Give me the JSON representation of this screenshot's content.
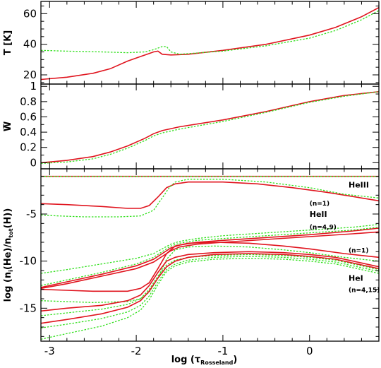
{
  "chart_data": [
    {
      "type": "line",
      "panel": "temperature",
      "ylabel": "T [K]",
      "xlim": [
        -3.1,
        0.8
      ],
      "ylim": [
        14,
        68
      ],
      "y_ticks": [
        20,
        40,
        60
      ],
      "series": [
        {
          "style": "solid",
          "color": "#e0141e",
          "x": [
            -3.1,
            -2.8,
            -2.5,
            -2.3,
            -2.1,
            -1.95,
            -1.85,
            -1.8,
            -1.75,
            -1.7,
            -1.6,
            -1.4,
            -1.0,
            -0.5,
            0.0,
            0.3,
            0.6,
            0.8
          ],
          "y": [
            17,
            18.5,
            21,
            24,
            29,
            32,
            34,
            35,
            35.5,
            33.5,
            33,
            33.5,
            36,
            40,
            46,
            51,
            58,
            64
          ]
        },
        {
          "style": "dotted",
          "color": "#33e01f",
          "x": [
            -3.1,
            -2.8,
            -2.4,
            -2.1,
            -1.9,
            -1.8,
            -1.7,
            -1.65,
            -1.6,
            -1.5,
            -1.0,
            -0.5,
            0.0,
            0.3,
            0.6,
            0.8
          ],
          "y": [
            36,
            35.5,
            35,
            34.5,
            35,
            36.5,
            38.5,
            38.5,
            35,
            33.5,
            35.5,
            39,
            44,
            49,
            56,
            62
          ]
        }
      ]
    },
    {
      "type": "line",
      "panel": "dilution",
      "ylabel": "W",
      "xlim": [
        -3.1,
        0.8
      ],
      "ylim": [
        -0.08,
        1.03
      ],
      "y_ticks": [
        0,
        0.2,
        0.4,
        0.6,
        0.8,
        1
      ],
      "series": [
        {
          "style": "solid",
          "color": "#e0141e",
          "x": [
            -3.1,
            -2.8,
            -2.5,
            -2.3,
            -2.1,
            -1.9,
            -1.8,
            -1.7,
            -1.5,
            -1.0,
            -0.5,
            0.0,
            0.4,
            0.8
          ],
          "y": [
            0.0,
            0.03,
            0.08,
            0.14,
            0.22,
            0.32,
            0.38,
            0.42,
            0.47,
            0.56,
            0.67,
            0.8,
            0.88,
            0.93
          ]
        },
        {
          "style": "dotted",
          "color": "#33e01f",
          "x": [
            -3.1,
            -2.8,
            -2.5,
            -2.3,
            -2.1,
            -1.9,
            -1.8,
            -1.7,
            -1.5,
            -1.0,
            -0.5,
            0.0,
            0.4,
            0.8
          ],
          "y": [
            -0.01,
            0.01,
            0.05,
            0.11,
            0.19,
            0.29,
            0.35,
            0.39,
            0.44,
            0.54,
            0.66,
            0.79,
            0.87,
            0.93
          ]
        }
      ]
    },
    {
      "type": "line",
      "panel": "populations",
      "xlabel_main": "log (τ",
      "xlabel_sub": "Rosseland",
      "xlabel_end": ")",
      "ylabel_main": "log (n",
      "ylabel_sub1": "i",
      "ylabel_mid": "(He)/n",
      "ylabel_sub2": "tot",
      "ylabel_end": "(H))",
      "xlim": [
        -3.1,
        0.8
      ],
      "ylim": [
        -18.5,
        -0.2
      ],
      "x_ticks": [
        -3,
        -2,
        -1,
        0
      ],
      "y_ticks": [
        -15,
        -10,
        -5
      ],
      "annotations": [
        {
          "text": "HeIII",
          "x": 0.45,
          "y": -2.2,
          "size": "big"
        },
        {
          "text": "(n=1)",
          "x": 0.0,
          "y": -4.1,
          "size": "small"
        },
        {
          "text": "HeII",
          "x": 0.0,
          "y": -5.3,
          "size": "big"
        },
        {
          "text": "(n=4,9)",
          "x": 0.0,
          "y": -6.6,
          "size": "small"
        },
        {
          "text": "(n=1)",
          "x": 0.45,
          "y": -9.1,
          "size": "small"
        },
        {
          "text": "HeI",
          "x": 0.45,
          "y": -12.1,
          "size": "big"
        },
        {
          "text": "(n=4,15)",
          "x": 0.45,
          "y": -13.3,
          "size": "small"
        }
      ],
      "series": [
        {
          "style": "solid",
          "color": "#e0141e",
          "x": [
            -3.1,
            0.8
          ],
          "y": [
            -1.0,
            -1.0
          ]
        },
        {
          "style": "dotted",
          "color": "#33e01f",
          "x": [
            -3.1,
            0.8
          ],
          "y": [
            -1.0,
            -1.0
          ]
        },
        {
          "style": "solid",
          "color": "#e0141e",
          "x": [
            -3.1,
            -2.8,
            -2.4,
            -2.1,
            -1.95,
            -1.85,
            -1.75,
            -1.65,
            -1.55,
            -1.4,
            -1.2,
            -1.0,
            -0.6,
            -0.2,
            0.2,
            0.6,
            0.8
          ],
          "y": [
            -3.9,
            -4.0,
            -4.2,
            -4.4,
            -4.4,
            -4.1,
            -3.2,
            -2.2,
            -1.8,
            -1.6,
            -1.6,
            -1.6,
            -1.8,
            -2.2,
            -2.7,
            -3.3,
            -3.6
          ]
        },
        {
          "style": "dotted",
          "color": "#33e01f",
          "x": [
            -3.1,
            -2.9,
            -2.6,
            -2.2,
            -1.95,
            -1.8,
            -1.7,
            -1.62,
            -1.55,
            -1.4,
            -1.0,
            -0.5,
            0.0,
            0.4,
            0.8
          ],
          "y": [
            -5.1,
            -5.2,
            -5.3,
            -5.3,
            -5.2,
            -4.6,
            -3.3,
            -2.2,
            -1.6,
            -1.3,
            -1.3,
            -1.6,
            -2.2,
            -2.9,
            -3.3
          ]
        },
        {
          "style": "dotted",
          "color": "#33e01f",
          "x": [
            -3.1,
            -2.8,
            -2.4,
            -2.0,
            -1.8,
            -1.7,
            -1.6,
            -1.5,
            -1.3,
            -1.0,
            -0.5,
            0.0,
            0.5,
            0.8
          ],
          "y": [
            -11.3,
            -10.9,
            -10.3,
            -9.7,
            -9.2,
            -8.7,
            -8.2,
            -7.9,
            -7.6,
            -7.3,
            -7.0,
            -6.7,
            -6.4,
            -6.1
          ]
        },
        {
          "style": "solid",
          "color": "#e0141e",
          "x": [
            -3.1,
            -2.8,
            -2.4,
            -2.0,
            -1.8,
            -1.7,
            -1.6,
            -1.5,
            -1.3,
            -1.0,
            -0.5,
            0.0,
            0.5,
            0.8
          ],
          "y": [
            -12.8,
            -12.2,
            -11.4,
            -10.5,
            -9.8,
            -9.2,
            -8.6,
            -8.3,
            -8.0,
            -7.8,
            -7.5,
            -7.2,
            -6.8,
            -6.5
          ]
        },
        {
          "style": "dotted",
          "color": "#33e01f",
          "x": [
            -3.1,
            -2.8,
            -2.4,
            -2.0,
            -1.8,
            -1.7,
            -1.6,
            -1.5,
            -1.3,
            -1.0,
            -0.5,
            0.0,
            0.5,
            0.8
          ],
          "y": [
            -12.6,
            -12.0,
            -11.2,
            -10.3,
            -9.6,
            -9.0,
            -8.4,
            -8.1,
            -7.8,
            -7.6,
            -7.3,
            -7.0,
            -6.7,
            -6.4
          ]
        },
        {
          "style": "solid",
          "color": "#e0141e",
          "x": [
            -3.1,
            -2.8,
            -2.4,
            -2.0,
            -1.8,
            -1.7,
            -1.6,
            -1.5,
            -1.3,
            -1.0,
            -0.5,
            0.0,
            0.5,
            0.8
          ],
          "y": [
            -12.9,
            -12.4,
            -11.6,
            -10.8,
            -10.1,
            -9.5,
            -8.9,
            -8.5,
            -8.2,
            -8.0,
            -7.7,
            -7.4,
            -7.1,
            -6.9
          ]
        },
        {
          "style": "solid",
          "color": "#e0141e",
          "x": [
            -3.1,
            -2.8,
            -2.5,
            -2.1,
            -1.95,
            -1.85,
            -1.75,
            -1.65,
            -1.55,
            -1.4,
            -1.1,
            -0.7,
            -0.3,
            0.0,
            0.4,
            0.8
          ],
          "y": [
            -13.0,
            -13.1,
            -13.2,
            -13.2,
            -12.9,
            -12.3,
            -10.8,
            -9.2,
            -8.4,
            -8.1,
            -8.0,
            -8.1,
            -8.4,
            -8.7,
            -9.2,
            -9.6
          ]
        },
        {
          "style": "dotted",
          "color": "#33e01f",
          "x": [
            -3.1,
            -2.8,
            -2.5,
            -2.1,
            -1.95,
            -1.85,
            -1.75,
            -1.65,
            -1.55,
            -1.4,
            -1.1,
            -0.7,
            -0.3,
            0.0,
            0.4,
            0.8
          ],
          "y": [
            -14.2,
            -14.3,
            -14.4,
            -14.3,
            -14.0,
            -13.3,
            -11.8,
            -9.8,
            -8.8,
            -8.5,
            -8.4,
            -8.5,
            -8.8,
            -9.1,
            -9.6,
            -10.0
          ]
        },
        {
          "style": "solid",
          "color": "#e0141e",
          "x": [
            -3.1,
            -2.8,
            -2.4,
            -2.1,
            -1.95,
            -1.85,
            -1.75,
            -1.65,
            -1.55,
            -1.4,
            -1.1,
            -0.7,
            -0.3,
            0.0,
            0.3,
            0.6,
            0.8
          ],
          "y": [
            -15.3,
            -15.0,
            -14.7,
            -14.2,
            -13.6,
            -12.6,
            -11.2,
            -10.0,
            -9.6,
            -9.3,
            -9.1,
            -9.0,
            -9.1,
            -9.3,
            -9.6,
            -10.2,
            -10.6
          ]
        },
        {
          "style": "dotted",
          "color": "#33e01f",
          "x": [
            -3.1,
            -2.8,
            -2.4,
            -2.1,
            -1.95,
            -1.85,
            -1.75,
            -1.65,
            -1.55,
            -1.4,
            -1.1,
            -0.7,
            -0.3,
            0.0,
            0.3,
            0.6,
            0.8
          ],
          "y": [
            -15.8,
            -15.5,
            -15.1,
            -14.6,
            -14.0,
            -13.0,
            -11.6,
            -10.4,
            -9.9,
            -9.6,
            -9.4,
            -9.3,
            -9.4,
            -9.6,
            -9.9,
            -10.5,
            -10.9
          ]
        },
        {
          "style": "solid",
          "color": "#e0141e",
          "x": [
            -3.1,
            -2.8,
            -2.4,
            -2.1,
            -1.95,
            -1.85,
            -1.75,
            -1.65,
            -1.55,
            -1.4,
            -1.1,
            -0.7,
            -0.3,
            0.0,
            0.3,
            0.6,
            0.8
          ],
          "y": [
            -16.6,
            -16.2,
            -15.6,
            -14.9,
            -14.2,
            -13.2,
            -11.8,
            -10.6,
            -10.0,
            -9.6,
            -9.3,
            -9.2,
            -9.3,
            -9.5,
            -9.8,
            -10.4,
            -10.8
          ]
        },
        {
          "style": "dotted",
          "color": "#33e01f",
          "x": [
            -3.1,
            -2.8,
            -2.4,
            -2.1,
            -1.95,
            -1.85,
            -1.75,
            -1.65,
            -1.55,
            -1.4,
            -1.1,
            -0.7,
            -0.3,
            0.0,
            0.3,
            0.6,
            0.8
          ],
          "y": [
            -17.1,
            -16.7,
            -16.1,
            -15.4,
            -14.7,
            -13.7,
            -12.2,
            -10.9,
            -10.3,
            -9.9,
            -9.6,
            -9.5,
            -9.6,
            -9.8,
            -10.1,
            -10.7,
            -11.1
          ]
        },
        {
          "style": "dotted",
          "color": "#33e01f",
          "x": [
            -3.1,
            -2.8,
            -2.4,
            -2.1,
            -1.95,
            -1.85,
            -1.75,
            -1.65,
            -1.55,
            -1.4,
            -1.1,
            -0.7,
            -0.3,
            0.0,
            0.3,
            0.6,
            0.8
          ],
          "y": [
            -18.3,
            -17.7,
            -16.9,
            -16.0,
            -15.2,
            -14.1,
            -12.5,
            -11.1,
            -10.5,
            -10.1,
            -9.8,
            -9.7,
            -9.8,
            -10.0,
            -10.3,
            -10.9,
            -11.3
          ]
        }
      ]
    }
  ]
}
